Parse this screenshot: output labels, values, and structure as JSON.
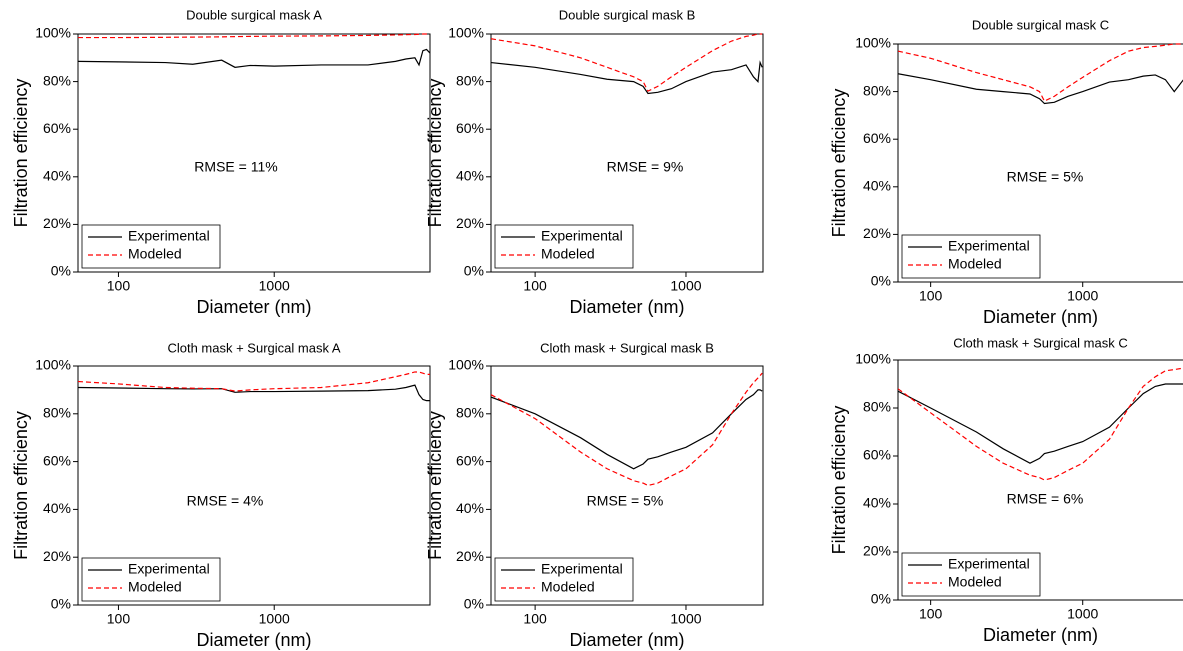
{
  "chart_data": [
    {
      "type": "line",
      "title": "Double surgical mask A",
      "xlabel": "Diameter (nm)",
      "ylabel": "Filtration efficiency",
      "annotation": "RMSE = 11%",
      "xscale": "log",
      "xlim": [
        55,
        10000
      ],
      "xticks": [
        100,
        1000
      ],
      "ylim": [
        0,
        100
      ],
      "yticks": [
        {
          "value": 0,
          "label": "0%"
        },
        {
          "value": 20,
          "label": "20%"
        },
        {
          "value": 40,
          "label": "40%"
        },
        {
          "value": 60,
          "label": "60%"
        },
        {
          "value": 80,
          "label": "80%"
        },
        {
          "value": 100,
          "label": "100%"
        }
      ],
      "legend": "lower left",
      "x": [
        55,
        100,
        200,
        300,
        460,
        560,
        700,
        1000,
        2000,
        4000,
        6000,
        7000,
        8000,
        8500,
        9000,
        9500,
        10000
      ],
      "series": [
        {
          "name": "Experimental",
          "color": "#000000",
          "linestyle": "solid",
          "values": [
            88.5,
            88.3,
            88,
            87.3,
            89,
            86,
            86.8,
            86.5,
            87,
            87,
            88.5,
            89.5,
            90,
            87,
            93,
            93.5,
            92
          ]
        },
        {
          "name": "Modeled",
          "color": "#ff0000",
          "linestyle": "dashed",
          "values": [
            98.5,
            98.5,
            98.6,
            98.7,
            98.8,
            98.9,
            99,
            99.1,
            99.2,
            99.4,
            99.6,
            99.7,
            99.8,
            99.9,
            100,
            100,
            100
          ]
        }
      ]
    },
    {
      "type": "line",
      "title": "Double surgical mask B",
      "xlabel": "Diameter (nm)",
      "ylabel": "Filtration efficiency",
      "annotation": "RMSE = 9%",
      "xscale": "log",
      "xlim": [
        51,
        3240
      ],
      "xticks": [
        100,
        1000
      ],
      "ylim": [
        0,
        100
      ],
      "yticks": [
        {
          "value": 0,
          "label": "0%"
        },
        {
          "value": 20,
          "label": "20%"
        },
        {
          "value": 40,
          "label": "40%"
        },
        {
          "value": 60,
          "label": "60%"
        },
        {
          "value": 80,
          "label": "80%"
        },
        {
          "value": 100,
          "label": "100%"
        }
      ],
      "legend": "lower left",
      "x": [
        51,
        100,
        200,
        300,
        450,
        520,
        560,
        650,
        800,
        1000,
        1500,
        2000,
        2500,
        2800,
        3000,
        3100,
        3200
      ],
      "series": [
        {
          "name": "Experimental",
          "color": "#000000",
          "linestyle": "solid",
          "values": [
            88,
            86,
            83,
            81,
            80,
            78,
            75,
            75.5,
            77,
            80,
            84,
            85,
            87,
            82,
            80,
            88,
            86
          ]
        },
        {
          "name": "Modeled",
          "color": "#ff0000",
          "linestyle": "dashed",
          "values": [
            98,
            95,
            90,
            86,
            82,
            80,
            76,
            78,
            82,
            86,
            93,
            97,
            99,
            99.5,
            100,
            100,
            100
          ]
        }
      ]
    },
    {
      "type": "line",
      "title": "Double surgical mask C",
      "xlabel": "Diameter (nm)",
      "ylabel": "Filtration efficiency",
      "annotation": "RMSE = 5%",
      "xscale": "log",
      "xlim": [
        61,
        5000
      ],
      "xticks": [
        100,
        1000
      ],
      "ylim": [
        0,
        100
      ],
      "yticks": [
        {
          "value": 0,
          "label": "0%"
        },
        {
          "value": 20,
          "label": "20%"
        },
        {
          "value": 40,
          "label": "40%"
        },
        {
          "value": 60,
          "label": "60%"
        },
        {
          "value": 80,
          "label": "80%"
        },
        {
          "value": 100,
          "label": "100%"
        }
      ],
      "legend": "lower left",
      "x": [
        61,
        100,
        200,
        300,
        450,
        520,
        560,
        650,
        800,
        1000,
        1500,
        2000,
        2500,
        3000,
        3500,
        4000,
        5000
      ],
      "series": [
        {
          "name": "Experimental",
          "color": "#000000",
          "linestyle": "solid",
          "values": [
            87.5,
            85,
            81,
            80,
            79,
            77,
            75,
            75.5,
            78,
            80,
            84,
            85,
            86.5,
            87,
            85,
            80,
            88
          ]
        },
        {
          "name": "Modeled",
          "color": "#ff0000",
          "linestyle": "dashed",
          "values": [
            97,
            94,
            88,
            85,
            82,
            80,
            76,
            78,
            82,
            86,
            93,
            97,
            98.5,
            99,
            99.5,
            100,
            100
          ]
        }
      ]
    },
    {
      "type": "line",
      "title": "Cloth mask + Surgical mask A",
      "xlabel": "Diameter (nm)",
      "ylabel": "Filtration efficiency",
      "annotation": "RMSE = 4%",
      "xscale": "log",
      "xlim": [
        55,
        10000
      ],
      "xticks": [
        100,
        1000
      ],
      "ylim": [
        0,
        100
      ],
      "yticks": [
        {
          "value": 0,
          "label": "0%"
        },
        {
          "value": 20,
          "label": "20%"
        },
        {
          "value": 40,
          "label": "40%"
        },
        {
          "value": 60,
          "label": "60%"
        },
        {
          "value": 80,
          "label": "80%"
        },
        {
          "value": 100,
          "label": "100%"
        }
      ],
      "legend": "lower left",
      "x": [
        55,
        100,
        200,
        300,
        460,
        560,
        700,
        1000,
        2000,
        4000,
        6000,
        7000,
        8000,
        8500,
        9000,
        9500,
        10000
      ],
      "series": [
        {
          "name": "Experimental",
          "color": "#000000",
          "linestyle": "solid",
          "values": [
            91,
            90.8,
            90.5,
            90.4,
            90.5,
            89,
            89.3,
            89.3,
            89.5,
            89.7,
            90.3,
            91,
            92,
            88,
            86,
            85.5,
            85.5
          ]
        },
        {
          "name": "Modeled",
          "color": "#ff0000",
          "linestyle": "dashed",
          "values": [
            93.5,
            92.5,
            91,
            90.7,
            90.5,
            89.5,
            90,
            90.5,
            91,
            93,
            95.5,
            96.5,
            97.5,
            97.5,
            97,
            96.5,
            96.5
          ]
        }
      ]
    },
    {
      "type": "line",
      "title": "Cloth mask + Surgical mask B",
      "xlabel": "Diameter (nm)",
      "ylabel": "Filtration efficiency",
      "annotation": "RMSE = 5%",
      "xscale": "log",
      "xlim": [
        51,
        3240
      ],
      "xticks": [
        100,
        1000
      ],
      "ylim": [
        0,
        100
      ],
      "yticks": [
        {
          "value": 0,
          "label": "0%"
        },
        {
          "value": 20,
          "label": "20%"
        },
        {
          "value": 40,
          "label": "40%"
        },
        {
          "value": 60,
          "label": "60%"
        },
        {
          "value": 80,
          "label": "80%"
        },
        {
          "value": 100,
          "label": "100%"
        }
      ],
      "legend": "lower left",
      "x": [
        51,
        100,
        200,
        300,
        450,
        520,
        560,
        650,
        800,
        1000,
        1500,
        2000,
        2500,
        2800,
        3000,
        3100,
        3200
      ],
      "series": [
        {
          "name": "Experimental",
          "color": "#000000",
          "linestyle": "solid",
          "values": [
            87,
            80,
            70,
            63,
            57,
            59,
            61,
            62,
            64,
            66,
            72,
            80,
            86,
            88,
            90,
            90,
            89.5
          ]
        },
        {
          "name": "Modeled",
          "color": "#ff0000",
          "linestyle": "dashed",
          "values": [
            88,
            78,
            64,
            57,
            52,
            51,
            50,
            51,
            54,
            57,
            67,
            80,
            89,
            93,
            95,
            96,
            97
          ]
        }
      ]
    },
    {
      "type": "line",
      "title": "Cloth mask + Surgical mask C",
      "xlabel": "Diameter (nm)",
      "ylabel": "Filtration efficiency",
      "annotation": "RMSE = 6%",
      "xscale": "log",
      "xlim": [
        61,
        5000
      ],
      "xticks": [
        100,
        1000
      ],
      "ylim": [
        0,
        100
      ],
      "yticks": [
        {
          "value": 0,
          "label": "0%"
        },
        {
          "value": 20,
          "label": "20%"
        },
        {
          "value": 40,
          "label": "40%"
        },
        {
          "value": 60,
          "label": "60%"
        },
        {
          "value": 80,
          "label": "80%"
        },
        {
          "value": 100,
          "label": "100%"
        }
      ],
      "legend": "lower left",
      "x": [
        61,
        100,
        200,
        300,
        450,
        520,
        560,
        650,
        800,
        1000,
        1500,
        2000,
        2500,
        3000,
        3500,
        4000,
        5000
      ],
      "series": [
        {
          "name": "Experimental",
          "color": "#000000",
          "linestyle": "solid",
          "values": [
            87,
            80,
            70,
            63,
            57,
            59,
            61,
            62,
            64,
            66,
            72,
            80,
            86,
            89,
            90,
            90,
            90
          ]
        },
        {
          "name": "Modeled",
          "color": "#ff0000",
          "linestyle": "dashed",
          "values": [
            88,
            78,
            64,
            57,
            52,
            51,
            50,
            51,
            54,
            57,
            67,
            80,
            89,
            93,
            95.5,
            96,
            97
          ]
        }
      ]
    }
  ]
}
